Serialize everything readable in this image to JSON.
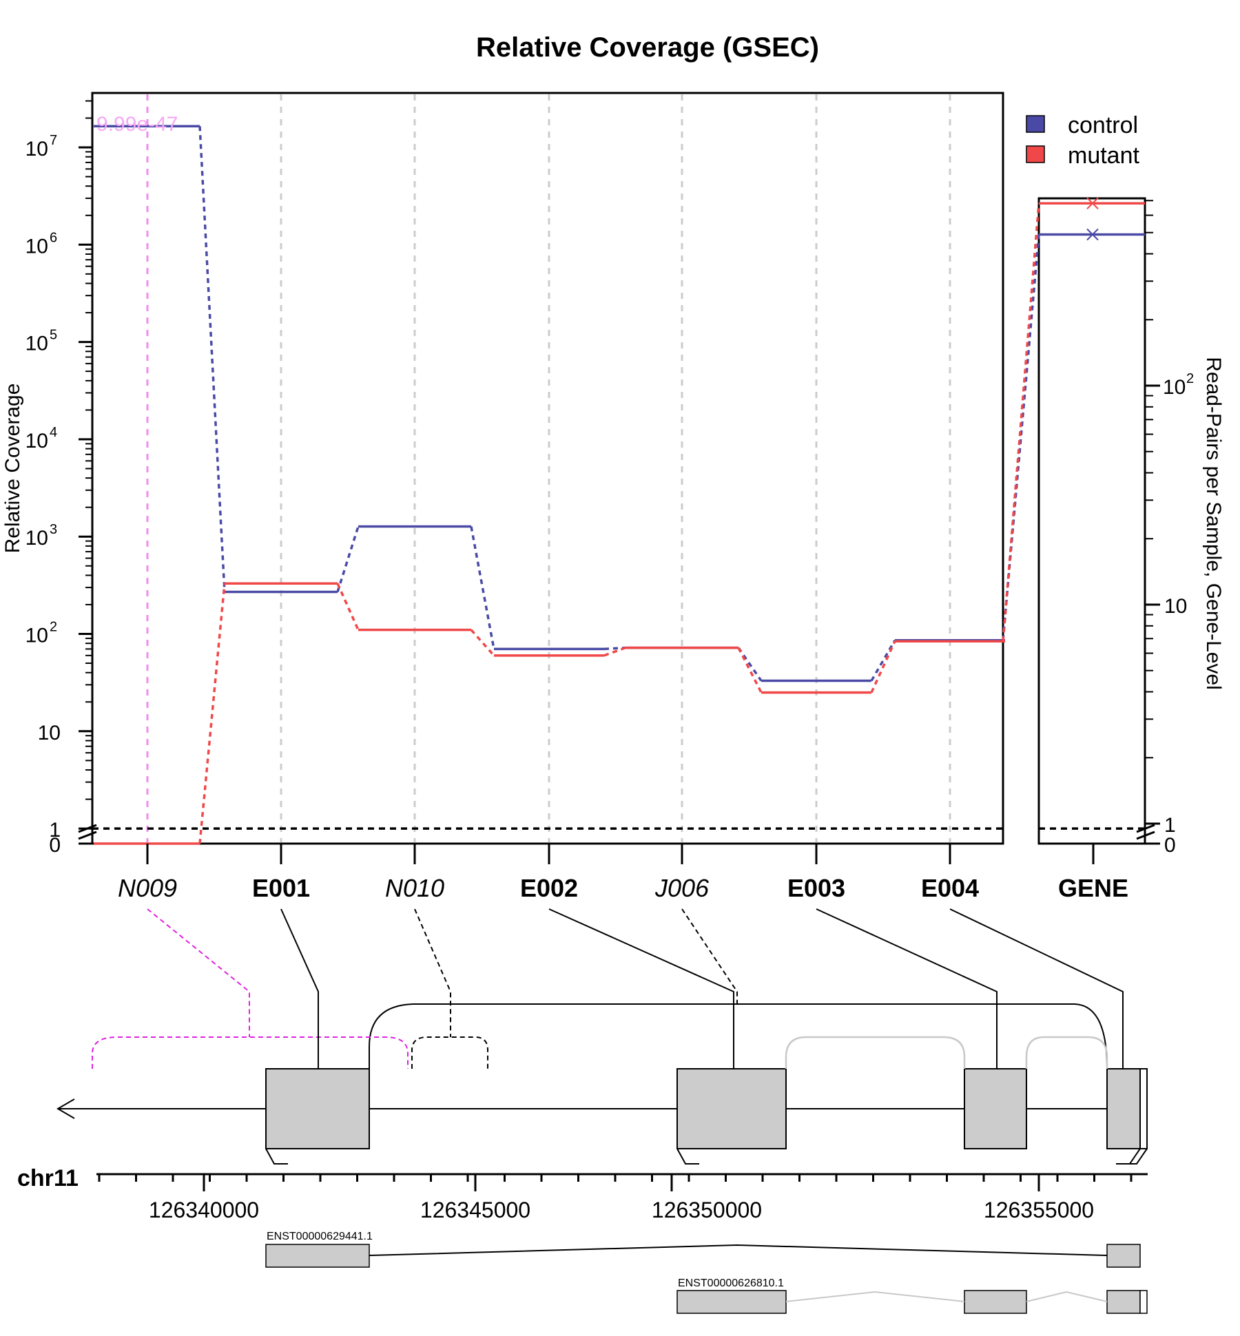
{
  "chart_data": {
    "type": "line",
    "title": "Relative Coverage (GSEC)",
    "ylabel": "Relative Coverage",
    "y2label": "Read-Pairs per Sample, Gene-Level",
    "y_scale": "log",
    "y_ticks": [
      "10^7",
      "10^6",
      "10^5",
      "10^4",
      "10^3",
      "10^2",
      "10",
      "1",
      "0"
    ],
    "y2_ticks": [
      "10^2",
      "10",
      "1",
      "0"
    ],
    "pvalue_annotation": "9.99e-47",
    "highlighted_feature": "N009",
    "features": [
      {
        "id": "N009",
        "style": "italic"
      },
      {
        "id": "E001",
        "style": "bold"
      },
      {
        "id": "N010",
        "style": "italic"
      },
      {
        "id": "E002",
        "style": "bold"
      },
      {
        "id": "J006",
        "style": "italic"
      },
      {
        "id": "E003",
        "style": "bold"
      },
      {
        "id": "E004",
        "style": "bold"
      }
    ],
    "series": [
      {
        "name": "control",
        "color": "#4a4aa6",
        "values": [
          16500000,
          270,
          1270,
          70,
          72,
          33,
          86
        ],
        "gene_level": 490
      },
      {
        "name": "mutant",
        "color": "#f04848",
        "values": [
          0,
          330,
          110,
          60,
          72,
          25,
          84
        ],
        "gene_level": 680
      }
    ],
    "gene_label": "GENE",
    "reference_line": 1,
    "legend": "top-right"
  },
  "gene_model": {
    "chromosome": "chr11",
    "coordinate_labels": [
      "126340000",
      "126345000",
      "126350000",
      "126355000"
    ],
    "transcripts": [
      "ENST00000629441.1",
      "ENST00000626810.1"
    ]
  },
  "colors": {
    "control": "#4a4aa6",
    "mutant": "#f04848",
    "highlight": "#f08cf0",
    "exon_fill": "#cccccc"
  }
}
